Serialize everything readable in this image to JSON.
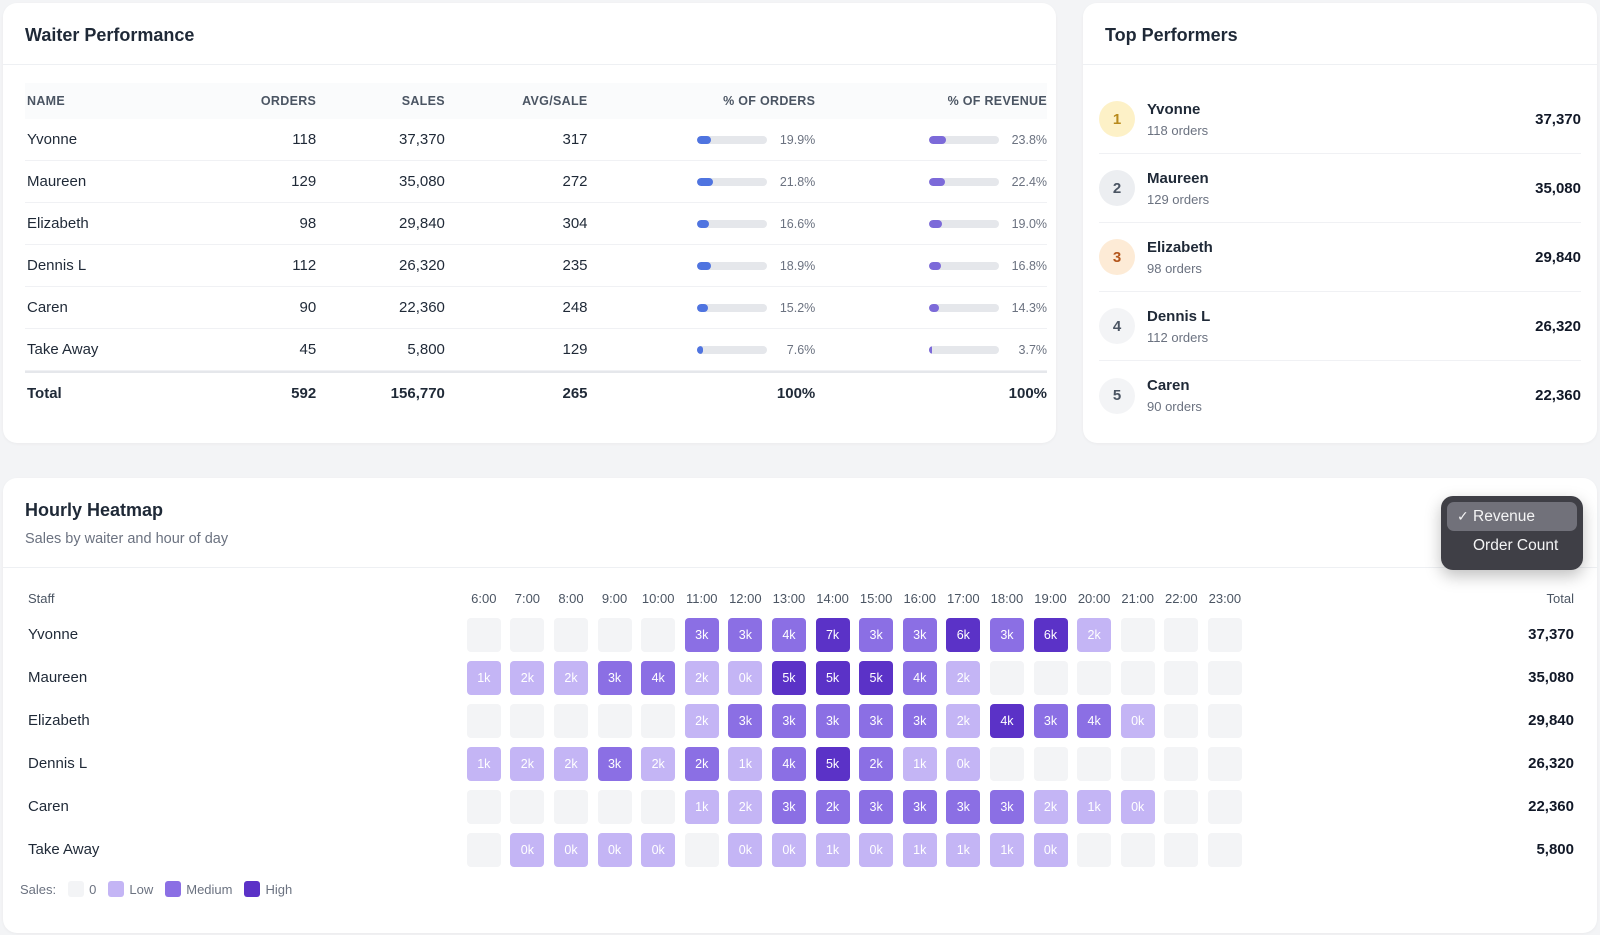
{
  "performance": {
    "title": "Waiter Performance",
    "headers": {
      "name": "NAME",
      "orders": "ORDERS",
      "sales": "SALES",
      "avg": "AVG/SALE",
      "pct_orders": "% OF ORDERS",
      "pct_revenue": "% OF REVENUE"
    },
    "rows": [
      {
        "name": "Yvonne",
        "orders": "118",
        "sales": "37,370",
        "avg": "317",
        "pct_orders": "19.9%",
        "pct_orders_val": 19.9,
        "pct_revenue": "23.8%",
        "pct_revenue_val": 23.8
      },
      {
        "name": "Maureen",
        "orders": "129",
        "sales": "35,080",
        "avg": "272",
        "pct_orders": "21.8%",
        "pct_orders_val": 21.8,
        "pct_revenue": "22.4%",
        "pct_revenue_val": 22.4
      },
      {
        "name": "Elizabeth",
        "orders": "98",
        "sales": "29,840",
        "avg": "304",
        "pct_orders": "16.6%",
        "pct_orders_val": 16.6,
        "pct_revenue": "19.0%",
        "pct_revenue_val": 19.0
      },
      {
        "name": "Dennis L",
        "orders": "112",
        "sales": "26,320",
        "avg": "235",
        "pct_orders": "18.9%",
        "pct_orders_val": 18.9,
        "pct_revenue": "16.8%",
        "pct_revenue_val": 16.8
      },
      {
        "name": "Caren",
        "orders": "90",
        "sales": "22,360",
        "avg": "248",
        "pct_orders": "15.2%",
        "pct_orders_val": 15.2,
        "pct_revenue": "14.3%",
        "pct_revenue_val": 14.3
      },
      {
        "name": "Take Away",
        "orders": "45",
        "sales": "5,800",
        "avg": "129",
        "pct_orders": "7.6%",
        "pct_orders_val": 7.6,
        "pct_revenue": "3.7%",
        "pct_revenue_val": 3.7
      }
    ],
    "total": {
      "name": "Total",
      "orders": "592",
      "sales": "156,770",
      "avg": "265",
      "pct_orders": "100%",
      "pct_revenue": "100%"
    },
    "colors": {
      "orders_bar": "#4f74e0",
      "revenue_bar": "#7c6ad9"
    }
  },
  "top_performers": {
    "title": "Top Performers",
    "items": [
      {
        "rank": "1",
        "name": "Yvonne",
        "orders": "118 orders",
        "sales": "37,370",
        "badge_bg": "#fdf1c7",
        "badge_fg": "#b88a1c"
      },
      {
        "rank": "2",
        "name": "Maureen",
        "orders": "129 orders",
        "sales": "35,080",
        "badge_bg": "#eceef1",
        "badge_fg": "#4b5563"
      },
      {
        "rank": "3",
        "name": "Elizabeth",
        "orders": "98 orders",
        "sales": "29,840",
        "badge_bg": "#fdebd6",
        "badge_fg": "#b4561c"
      },
      {
        "rank": "4",
        "name": "Dennis L",
        "orders": "112 orders",
        "sales": "26,320",
        "badge_bg": "#f3f4f6",
        "badge_fg": "#4b5563"
      },
      {
        "rank": "5",
        "name": "Caren",
        "orders": "90 orders",
        "sales": "22,360",
        "badge_bg": "#f3f4f6",
        "badge_fg": "#4b5563"
      }
    ]
  },
  "heatmap": {
    "title": "Hourly Heatmap",
    "subtitle": "Sales by waiter and hour of day",
    "metric_menu": {
      "options": [
        "Revenue",
        "Order Count"
      ],
      "selected": "Revenue",
      "check": "✓"
    },
    "staff_header": "Staff",
    "total_header": "Total",
    "hours": [
      "6:00",
      "7:00",
      "8:00",
      "9:00",
      "10:00",
      "11:00",
      "12:00",
      "13:00",
      "14:00",
      "15:00",
      "16:00",
      "17:00",
      "18:00",
      "19:00",
      "20:00",
      "21:00",
      "22:00",
      "23:00"
    ],
    "rows": [
      {
        "name": "Yvonne",
        "total": "37,370",
        "cells": [
          [
            "",
            0
          ],
          [
            "",
            0
          ],
          [
            "",
            0
          ],
          [
            "",
            0
          ],
          [
            "",
            0
          ],
          [
            "3k",
            2
          ],
          [
            "3k",
            2
          ],
          [
            "4k",
            2
          ],
          [
            "7k",
            3
          ],
          [
            "3k",
            2
          ],
          [
            "3k",
            2
          ],
          [
            "6k",
            3
          ],
          [
            "3k",
            2
          ],
          [
            "6k",
            3
          ],
          [
            "2k",
            1
          ],
          [
            "",
            0
          ],
          [
            "",
            0
          ],
          [
            "",
            0
          ]
        ]
      },
      {
        "name": "Maureen",
        "total": "35,080",
        "cells": [
          [
            "1k",
            1
          ],
          [
            "2k",
            1
          ],
          [
            "2k",
            1
          ],
          [
            "3k",
            2
          ],
          [
            "4k",
            2
          ],
          [
            "2k",
            1
          ],
          [
            "0k",
            1
          ],
          [
            "5k",
            3
          ],
          [
            "5k",
            3
          ],
          [
            "5k",
            3
          ],
          [
            "4k",
            2
          ],
          [
            "2k",
            1
          ],
          [
            "",
            0
          ],
          [
            "",
            0
          ],
          [
            "",
            0
          ],
          [
            "",
            0
          ],
          [
            "",
            0
          ],
          [
            "",
            0
          ]
        ]
      },
      {
        "name": "Elizabeth",
        "total": "29,840",
        "cells": [
          [
            "",
            0
          ],
          [
            "",
            0
          ],
          [
            "",
            0
          ],
          [
            "",
            0
          ],
          [
            "",
            0
          ],
          [
            "2k",
            1
          ],
          [
            "3k",
            2
          ],
          [
            "3k",
            2
          ],
          [
            "3k",
            2
          ],
          [
            "3k",
            2
          ],
          [
            "3k",
            2
          ],
          [
            "2k",
            1
          ],
          [
            "4k",
            3
          ],
          [
            "3k",
            2
          ],
          [
            "4k",
            2
          ],
          [
            "0k",
            1
          ],
          [
            "",
            0
          ],
          [
            "",
            0
          ]
        ]
      },
      {
        "name": "Dennis L",
        "total": "26,320",
        "cells": [
          [
            "1k",
            1
          ],
          [
            "2k",
            1
          ],
          [
            "2k",
            1
          ],
          [
            "3k",
            2
          ],
          [
            "2k",
            1
          ],
          [
            "2k",
            2
          ],
          [
            "1k",
            1
          ],
          [
            "4k",
            2
          ],
          [
            "5k",
            3
          ],
          [
            "2k",
            2
          ],
          [
            "1k",
            1
          ],
          [
            "0k",
            1
          ],
          [
            "",
            0
          ],
          [
            "",
            0
          ],
          [
            "",
            0
          ],
          [
            "",
            0
          ],
          [
            "",
            0
          ],
          [
            "",
            0
          ]
        ]
      },
      {
        "name": "Caren",
        "total": "22,360",
        "cells": [
          [
            "",
            0
          ],
          [
            "",
            0
          ],
          [
            "",
            0
          ],
          [
            "",
            0
          ],
          [
            "",
            0
          ],
          [
            "1k",
            1
          ],
          [
            "2k",
            1
          ],
          [
            "3k",
            2
          ],
          [
            "2k",
            2
          ],
          [
            "3k",
            2
          ],
          [
            "3k",
            2
          ],
          [
            "3k",
            2
          ],
          [
            "3k",
            2
          ],
          [
            "2k",
            1
          ],
          [
            "1k",
            1
          ],
          [
            "0k",
            1
          ],
          [
            "",
            0
          ],
          [
            "",
            0
          ]
        ]
      },
      {
        "name": "Take Away",
        "total": "5,800",
        "cells": [
          [
            "",
            0
          ],
          [
            "0k",
            1
          ],
          [
            "0k",
            1
          ],
          [
            "0k",
            1
          ],
          [
            "0k",
            1
          ],
          [
            "",
            0
          ],
          [
            "0k",
            1
          ],
          [
            "0k",
            1
          ],
          [
            "1k",
            1
          ],
          [
            "0k",
            1
          ],
          [
            "1k",
            1
          ],
          [
            "1k",
            1
          ],
          [
            "1k",
            1
          ],
          [
            "0k",
            1
          ],
          [
            "",
            0
          ],
          [
            "",
            0
          ],
          [
            "",
            0
          ],
          [
            "",
            0
          ]
        ]
      }
    ],
    "legend": {
      "label": "Sales:",
      "items": [
        {
          "label": "0",
          "color": "#f3f4f6"
        },
        {
          "label": "Low",
          "color": "#c4b5f5"
        },
        {
          "label": "Medium",
          "color": "#8b6fe4"
        },
        {
          "label": "High",
          "color": "#5b32c7"
        }
      ]
    }
  }
}
